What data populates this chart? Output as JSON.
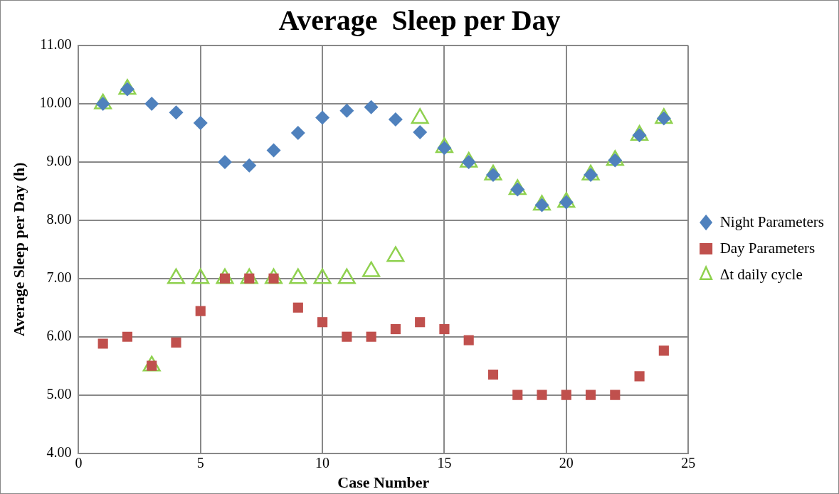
{
  "chart_data": {
    "type": "scatter",
    "title": "Average  Sleep per Day",
    "xlabel": "Case Number",
    "ylabel": "Average Sleep per Day (h)",
    "x": [
      1,
      2,
      3,
      4,
      5,
      6,
      7,
      8,
      9,
      10,
      11,
      12,
      13,
      14,
      15,
      16,
      17,
      18,
      19,
      20,
      21,
      22,
      23,
      24
    ],
    "series": [
      {
        "name": "Night Parameters",
        "color": "#4f81bd",
        "marker": "diamond",
        "values": [
          10.0,
          10.25,
          10.0,
          9.85,
          9.67,
          9.0,
          8.94,
          9.2,
          9.5,
          9.76,
          9.88,
          9.94,
          9.73,
          9.51,
          9.24,
          9.0,
          8.78,
          8.53,
          8.26,
          8.31,
          8.78,
          9.03,
          9.46,
          9.75
        ]
      },
      {
        "name": "Day Parameters",
        "color": "#c0504d",
        "marker": "square",
        "values": [
          5.88,
          6.0,
          5.5,
          5.9,
          6.44,
          7.0,
          7.0,
          7.0,
          6.5,
          6.25,
          6.0,
          6.0,
          6.13,
          6.25,
          6.13,
          5.94,
          5.35,
          5.0,
          5.0,
          5.0,
          5.0,
          5.0,
          5.32,
          5.76
        ]
      },
      {
        "name": "Δt daily cycle",
        "color": "#8fd14f",
        "marker": "triangle",
        "values": [
          10.0,
          10.25,
          5.5,
          7.0,
          7.0,
          7.0,
          7.0,
          7.0,
          7.0,
          7.0,
          7.0,
          7.12,
          7.38,
          9.75,
          9.25,
          9.0,
          8.78,
          8.53,
          8.26,
          8.31,
          8.78,
          9.03,
          9.46,
          9.75
        ]
      }
    ],
    "xlim": [
      0,
      25
    ],
    "xticks": [
      0,
      5,
      10,
      15,
      20,
      25
    ],
    "ylim": [
      4,
      11
    ],
    "yticks": [
      {
        "value": 4,
        "label": "4.00"
      },
      {
        "value": 5,
        "label": "5.00"
      },
      {
        "value": 6,
        "label": "6.00"
      },
      {
        "value": 7,
        "label": "7.00"
      },
      {
        "value": 8,
        "label": "8.00"
      },
      {
        "value": 9,
        "label": "9.00"
      },
      {
        "value": 10,
        "label": "10.00"
      },
      {
        "value": 11,
        "label": "11.00"
      }
    ],
    "grid": true,
    "legend": "right"
  }
}
